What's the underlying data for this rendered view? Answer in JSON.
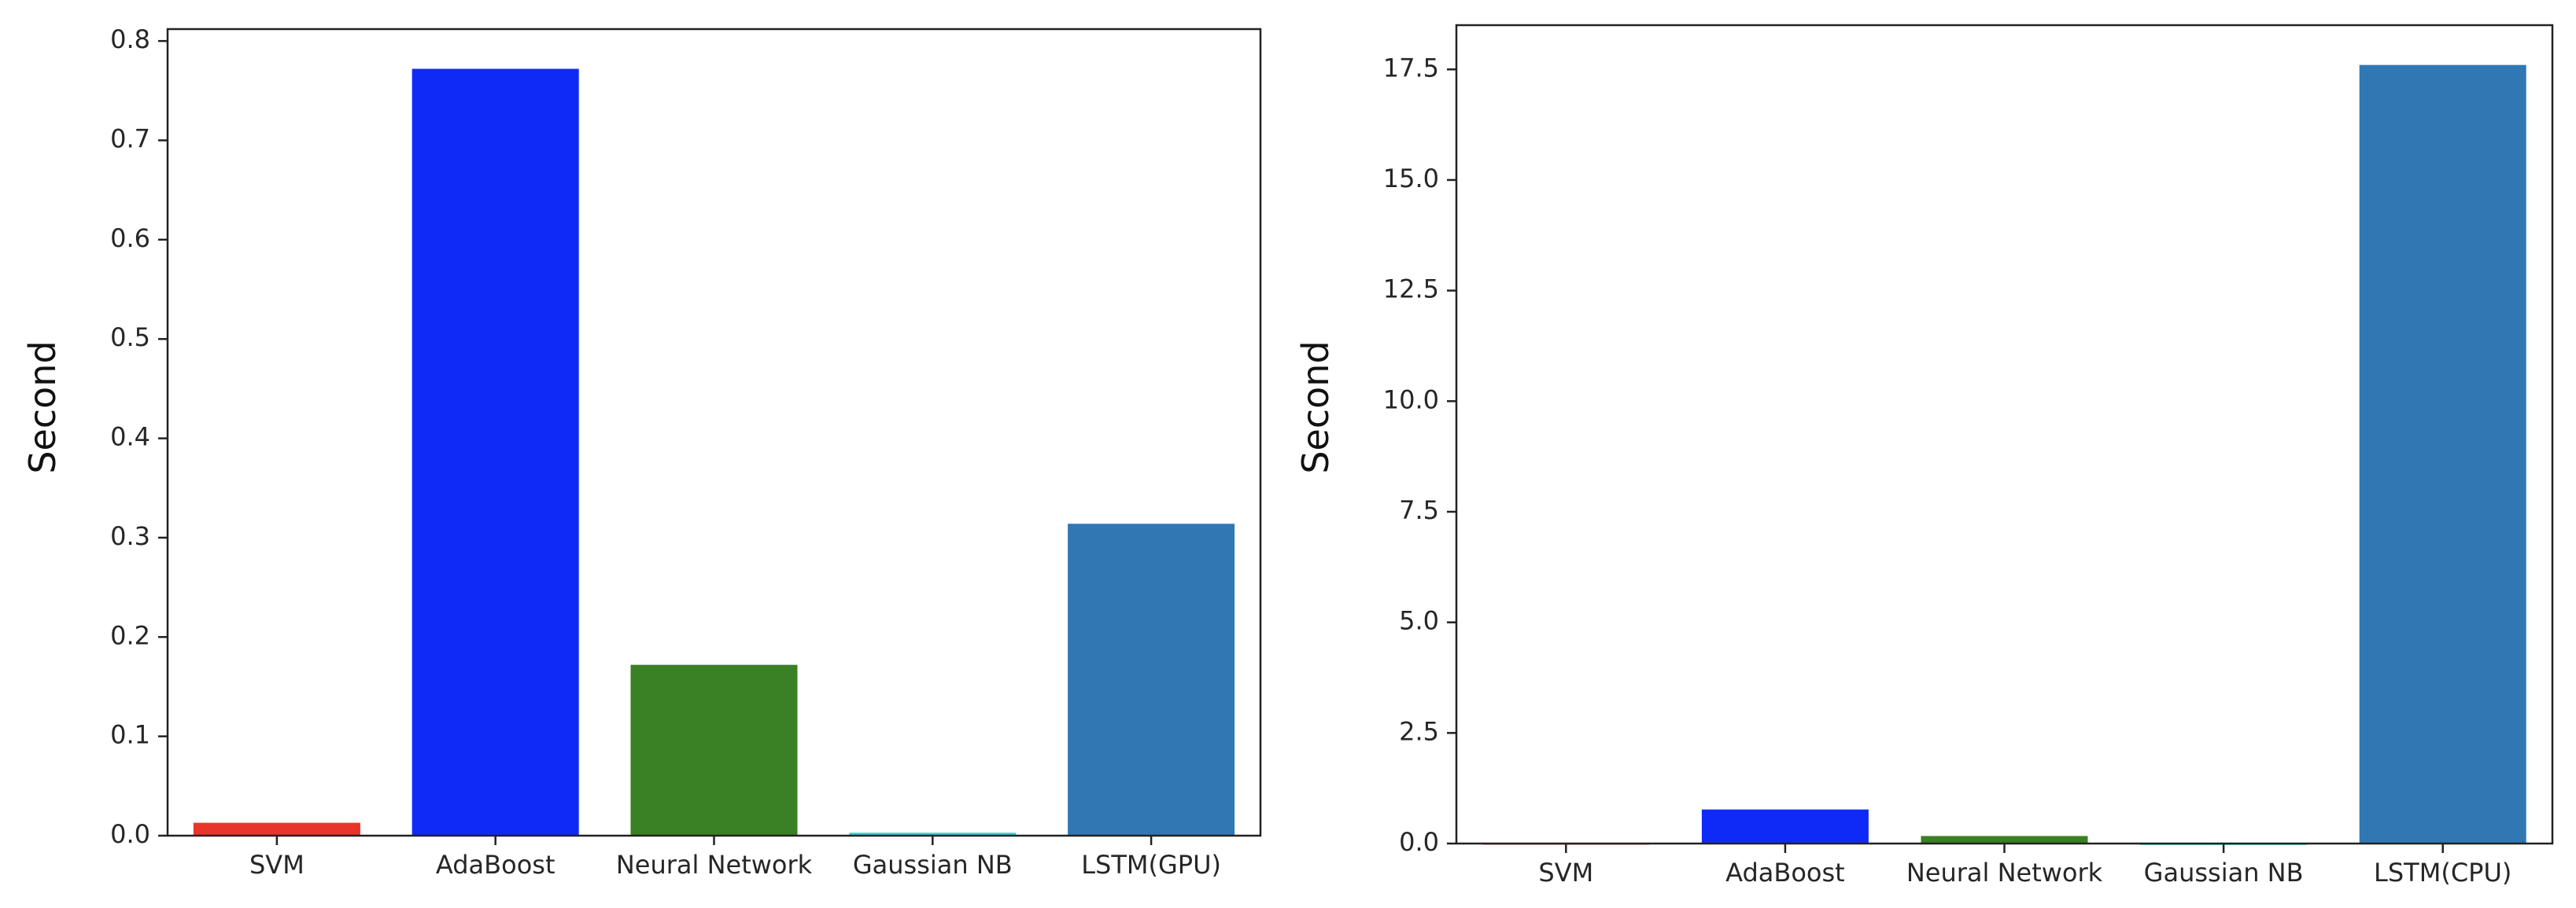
{
  "chart_data": [
    {
      "type": "bar",
      "categories": [
        "SVM",
        "AdaBoost",
        "Neural Network",
        "Gaussian NB",
        "LSTM(GPU)"
      ],
      "values": [
        0.013,
        0.772,
        0.172,
        0.003,
        0.314
      ],
      "colors": [
        "#e8342a",
        "#0f2af7",
        "#3a8024",
        "#35d8d4",
        "#2f78b4"
      ],
      "title": "",
      "xlabel": "",
      "ylabel": "Second",
      "ylim": [
        0,
        0.812
      ],
      "yticks": [
        0.0,
        0.1,
        0.2,
        0.3,
        0.4,
        0.5,
        0.6,
        0.7,
        0.8
      ],
      "ytick_labels": [
        "0.0",
        "0.1",
        "0.2",
        "0.3",
        "0.4",
        "0.5",
        "0.6",
        "0.7",
        "0.8"
      ],
      "grid": false,
      "legend": "none"
    },
    {
      "type": "bar",
      "categories": [
        "SVM",
        "AdaBoost",
        "Neural Network",
        "Gaussian NB",
        "LSTM(CPU)"
      ],
      "values": [
        0.01,
        0.77,
        0.17,
        0.003,
        17.6
      ],
      "colors": [
        "#e8342a",
        "#0f2af7",
        "#3a8024",
        "#35d8d4",
        "#2f78b4"
      ],
      "title": "",
      "xlabel": "",
      "ylabel": "Second",
      "ylim": [
        0,
        18.5
      ],
      "yticks": [
        0.0,
        2.5,
        5.0,
        7.5,
        10.0,
        12.5,
        15.0,
        17.5
      ],
      "ytick_labels": [
        "0.0",
        "2.5",
        "5.0",
        "7.5",
        "10.0",
        "12.5",
        "15.0",
        "17.5"
      ],
      "grid": false,
      "legend": "none"
    }
  ]
}
